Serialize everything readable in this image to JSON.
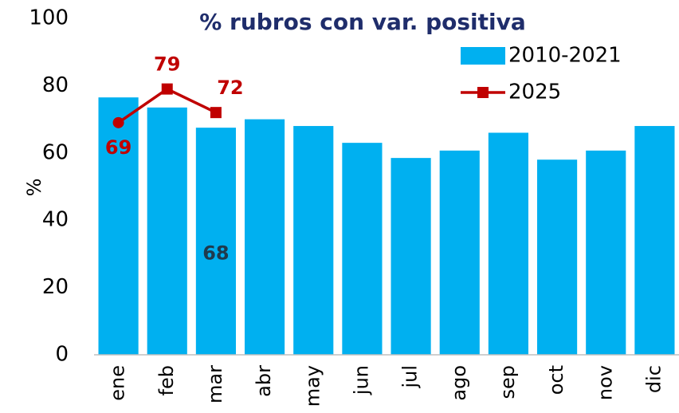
{
  "chart_data": {
    "type": "bar",
    "title": "% rubros con var. positiva",
    "y_label": "%",
    "categories": [
      "ene",
      "feb",
      "mar",
      "abr",
      "may",
      "jun",
      "jul",
      "ago",
      "sep",
      "oct",
      "nov",
      "dic"
    ],
    "series": [
      {
        "name": "2010-2021",
        "type": "bar",
        "color": "#00b0f0",
        "values": [
          76.5,
          73.5,
          67.5,
          70,
          68,
          63,
          58.5,
          60.7,
          66,
          58,
          60.7,
          68
        ],
        "value_labels": [
          null,
          null,
          "68",
          null,
          null,
          null,
          null,
          null,
          null,
          null,
          null,
          null
        ],
        "label_color": "#1f3a4d"
      },
      {
        "name": "2025",
        "type": "line",
        "color": "#c00000",
        "values": [
          69,
          79,
          72,
          null,
          null,
          null,
          null,
          null,
          null,
          null,
          null,
          null
        ],
        "data_labels": true
      }
    ],
    "ylim": [
      0,
      100
    ],
    "yticks": [
      0,
      20,
      40,
      60,
      80,
      100
    ],
    "grid": false,
    "legend": "top-right"
  }
}
